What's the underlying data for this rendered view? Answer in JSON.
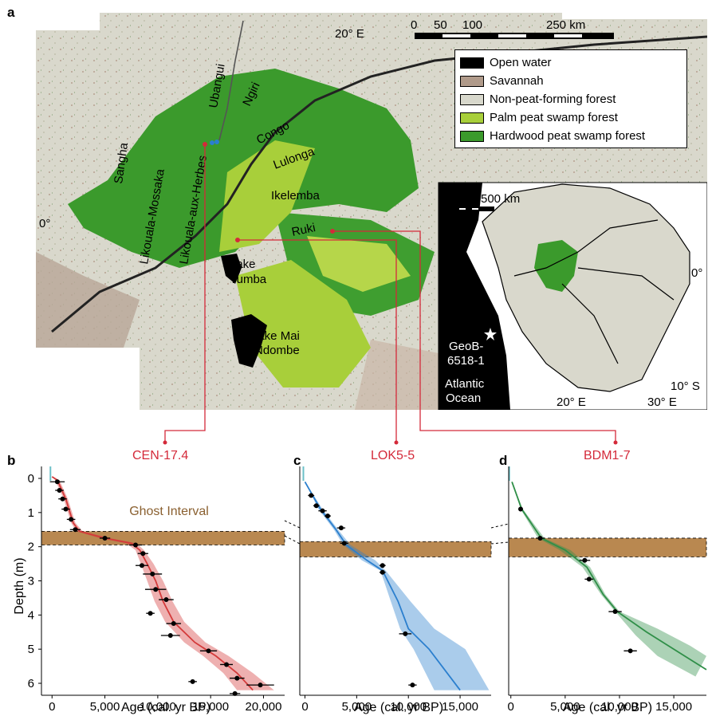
{
  "panels": {
    "a": "a",
    "b": "b",
    "c": "c",
    "d": "d"
  },
  "map": {
    "longitude_label": "20° E",
    "latitude_label": "0°",
    "scalebar": {
      "ticks": [
        "0",
        "50",
        "100",
        "250 km"
      ]
    },
    "rivers": [
      "Ubangui",
      "Ngiri",
      "Congo",
      "Lulonga",
      "Sangha",
      "Likouala-aux-Herbes",
      "Likouala-Mossaka",
      "Ikelemba",
      "Ruki"
    ],
    "lakes": [
      "Lake Tumba",
      "Lake Mai Ndombe"
    ],
    "lake_tumba_lines": [
      "Lake",
      "Tumba"
    ],
    "lake_mai_lines": [
      "Lake Mai",
      "Ndombe"
    ],
    "legend": [
      {
        "label": "Open water",
        "color": "#000000"
      },
      {
        "label": "Savannah",
        "color": "#b09a8a"
      },
      {
        "label": "Non-peat-forming forest",
        "color": "#d8d8cc"
      },
      {
        "label": "Palm peat swamp forest",
        "color": "#a8cf3a"
      },
      {
        "label": "Hardwood peat swamp forest",
        "color": "#3b9a2c"
      }
    ],
    "inset": {
      "scalebar": [
        "0",
        "500 km"
      ],
      "site_lines": [
        "GeoB-",
        "6518-1"
      ],
      "ocean_lines": [
        "Atlantic",
        "Ocean"
      ],
      "lat0": "0°",
      "lat10": "10° S",
      "lon20": "20° E",
      "lon30": "30° E"
    }
  },
  "colors": {
    "core": "#d42a3a",
    "cen": "#d43a3a",
    "lok": "#2b7fce",
    "bdm": "#2f8f48",
    "ghost": "#b98850"
  },
  "chart_data": [
    {
      "type": "line",
      "core": "CEN-17.4",
      "annotation": "Ghost Interval",
      "ylabel": "Depth (m)",
      "xlabel": "Age (cal. yr BP)",
      "xlim": [
        -1000,
        22000
      ],
      "ylim": [
        6.35,
        -0.35
      ],
      "xticks": [
        0,
        5000,
        10000,
        15000,
        20000
      ],
      "xtick_labels": [
        "0",
        "5,000",
        "10,000",
        "15,000",
        "20,000"
      ],
      "yticks": [
        0,
        1,
        2,
        3,
        4,
        5,
        6
      ],
      "ghost_interval": [
        1.55,
        1.95
      ],
      "points": [
        {
          "age": 500,
          "depth": 0.1,
          "err": 700
        },
        {
          "age": 700,
          "depth": 0.35,
          "err": 400
        },
        {
          "age": 1000,
          "depth": 0.6,
          "err": 400
        },
        {
          "age": 1300,
          "depth": 0.9,
          "err": 400
        },
        {
          "age": 1800,
          "depth": 1.2,
          "err": 400
        },
        {
          "age": 2200,
          "depth": 1.5,
          "err": 500
        },
        {
          "age": 5000,
          "depth": 1.75,
          "err": 500
        },
        {
          "age": 7900,
          "depth": 1.95,
          "err": 600
        },
        {
          "age": 8600,
          "depth": 2.2,
          "err": 500
        },
        {
          "age": 8500,
          "depth": 2.55,
          "err": 600
        },
        {
          "age": 9500,
          "depth": 2.8,
          "err": 900
        },
        {
          "age": 9800,
          "depth": 3.25,
          "err": 1000
        },
        {
          "age": 10800,
          "depth": 3.55,
          "err": 700
        },
        {
          "age": 9300,
          "depth": 3.95,
          "err": 400
        },
        {
          "age": 11500,
          "depth": 4.25,
          "err": 700
        },
        {
          "age": 11200,
          "depth": 4.6,
          "err": 900
        },
        {
          "age": 14800,
          "depth": 5.05,
          "err": 800
        },
        {
          "age": 16500,
          "depth": 5.45,
          "err": 600
        },
        {
          "age": 17500,
          "depth": 5.85,
          "err": 700
        },
        {
          "age": 19700,
          "depth": 6.05,
          "err": 1300
        },
        {
          "age": 13300,
          "depth": 5.95,
          "err": 400
        },
        {
          "age": 17300,
          "depth": 6.3,
          "err": 500
        }
      ],
      "median": [
        [
          0,
          -0.05
        ],
        [
          500,
          0.05
        ],
        [
          1300,
          0.6
        ],
        [
          2000,
          1.3
        ],
        [
          2600,
          1.55
        ],
        [
          5000,
          1.75
        ],
        [
          7500,
          1.9
        ],
        [
          8300,
          2.1
        ],
        [
          9000,
          2.5
        ],
        [
          9800,
          3.0
        ],
        [
          10500,
          3.6
        ],
        [
          11500,
          4.2
        ],
        [
          13500,
          4.8
        ],
        [
          15500,
          5.2
        ],
        [
          17500,
          5.7
        ],
        [
          19000,
          6.2
        ]
      ],
      "band_left": [
        [
          0,
          -0.05
        ],
        [
          300,
          0.05
        ],
        [
          1100,
          0.6
        ],
        [
          1800,
          1.3
        ],
        [
          2300,
          1.55
        ],
        [
          4500,
          1.75
        ],
        [
          7000,
          1.9
        ],
        [
          7900,
          2.1
        ],
        [
          8400,
          2.5
        ],
        [
          9000,
          3.0
        ],
        [
          9700,
          3.6
        ],
        [
          10700,
          4.2
        ],
        [
          12500,
          4.8
        ],
        [
          14300,
          5.2
        ],
        [
          16200,
          5.7
        ],
        [
          17500,
          6.2
        ]
      ],
      "band_right": [
        [
          0,
          -0.05
        ],
        [
          700,
          0.05
        ],
        [
          1500,
          0.6
        ],
        [
          2200,
          1.3
        ],
        [
          2900,
          1.55
        ],
        [
          5500,
          1.75
        ],
        [
          8000,
          1.9
        ],
        [
          8700,
          2.1
        ],
        [
          9600,
          2.5
        ],
        [
          10500,
          3.0
        ],
        [
          11400,
          3.6
        ],
        [
          12500,
          4.2
        ],
        [
          14500,
          4.8
        ],
        [
          16700,
          5.2
        ],
        [
          19000,
          5.7
        ],
        [
          21000,
          6.2
        ]
      ]
    },
    {
      "type": "line",
      "core": "LOK5-5",
      "xlabel": "Age (cal. yr BP)",
      "xlim": [
        -500,
        18000
      ],
      "ylim": [
        6.35,
        -0.35
      ],
      "xticks": [
        0,
        5000,
        10000,
        15000
      ],
      "xtick_labels": [
        "0",
        "5,000",
        "10,000",
        "15,000"
      ],
      "ghost_interval": [
        1.85,
        2.3
      ],
      "points": [
        {
          "age": 600,
          "depth": 0.5,
          "err": 300
        },
        {
          "age": 1100,
          "depth": 0.8,
          "err": 300
        },
        {
          "age": 1700,
          "depth": 0.95,
          "err": 400
        },
        {
          "age": 2200,
          "depth": 1.1,
          "err": 300
        },
        {
          "age": 3500,
          "depth": 1.45,
          "err": 400
        },
        {
          "age": 3800,
          "depth": 1.9,
          "err": 400
        },
        {
          "age": 7500,
          "depth": 2.55,
          "err": 300
        },
        {
          "age": 7500,
          "depth": 2.75,
          "err": 300
        },
        {
          "age": 9700,
          "depth": 4.55,
          "err": 600
        },
        {
          "age": 10400,
          "depth": 6.05,
          "err": 400
        }
      ],
      "median": [
        [
          0,
          0.1
        ],
        [
          1500,
          0.9
        ],
        [
          3000,
          1.5
        ],
        [
          4000,
          1.95
        ],
        [
          6000,
          2.4
        ],
        [
          7500,
          2.7
        ],
        [
          9000,
          3.6
        ],
        [
          10000,
          4.4
        ],
        [
          12000,
          5.0
        ],
        [
          15000,
          6.2
        ]
      ],
      "band_left": [
        [
          0,
          0.1
        ],
        [
          1300,
          0.9
        ],
        [
          2800,
          1.5
        ],
        [
          3700,
          1.95
        ],
        [
          5500,
          2.4
        ],
        [
          7300,
          2.7
        ],
        [
          8300,
          3.6
        ],
        [
          9200,
          4.4
        ],
        [
          10500,
          5.0
        ],
        [
          12500,
          6.2
        ]
      ],
      "band_right": [
        [
          0,
          0.1
        ],
        [
          1700,
          0.9
        ],
        [
          3200,
          1.5
        ],
        [
          4400,
          1.95
        ],
        [
          6800,
          2.4
        ],
        [
          7800,
          2.7
        ],
        [
          10200,
          3.6
        ],
        [
          12500,
          4.4
        ],
        [
          15500,
          5.0
        ],
        [
          17800,
          6.2
        ]
      ]
    },
    {
      "type": "line",
      "core": "BDM1-7",
      "xlabel": "Age (cal. yr BP)",
      "xlim": [
        -200,
        18000
      ],
      "ylim": [
        6.35,
        -0.35
      ],
      "xticks": [
        0,
        5000,
        10000,
        15000
      ],
      "xtick_labels": [
        "0",
        "5,000",
        "10,000",
        "15,000"
      ],
      "ghost_interval": [
        1.75,
        2.3
      ],
      "points": [
        {
          "age": 900,
          "depth": 0.9,
          "err": 200
        },
        {
          "age": 2700,
          "depth": 1.75,
          "err": 400
        },
        {
          "age": 6800,
          "depth": 2.4,
          "err": 500
        },
        {
          "age": 7200,
          "depth": 2.95,
          "err": 400
        },
        {
          "age": 9600,
          "depth": 3.9,
          "err": 600
        },
        {
          "age": 11000,
          "depth": 5.05,
          "err": 600
        }
      ],
      "median": [
        [
          100,
          0.1
        ],
        [
          1000,
          0.9
        ],
        [
          2800,
          1.75
        ],
        [
          5000,
          2.1
        ],
        [
          7000,
          2.6
        ],
        [
          8500,
          3.4
        ],
        [
          9800,
          3.9
        ],
        [
          12500,
          4.5
        ],
        [
          15500,
          5.1
        ],
        [
          18000,
          5.6
        ]
      ],
      "band_left": [
        [
          100,
          0.1
        ],
        [
          900,
          0.9
        ],
        [
          2500,
          1.75
        ],
        [
          4500,
          2.1
        ],
        [
          6600,
          2.6
        ],
        [
          8300,
          3.4
        ],
        [
          9600,
          3.9
        ],
        [
          11500,
          4.6
        ],
        [
          13500,
          5.2
        ],
        [
          17000,
          5.8
        ]
      ],
      "band_right": [
        [
          100,
          0.1
        ],
        [
          1100,
          0.9
        ],
        [
          3100,
          1.75
        ],
        [
          5500,
          2.1
        ],
        [
          7300,
          2.6
        ],
        [
          8700,
          3.4
        ],
        [
          10000,
          3.9
        ],
        [
          13500,
          4.4
        ],
        [
          16500,
          4.9
        ],
        [
          18000,
          5.2
        ]
      ]
    }
  ]
}
